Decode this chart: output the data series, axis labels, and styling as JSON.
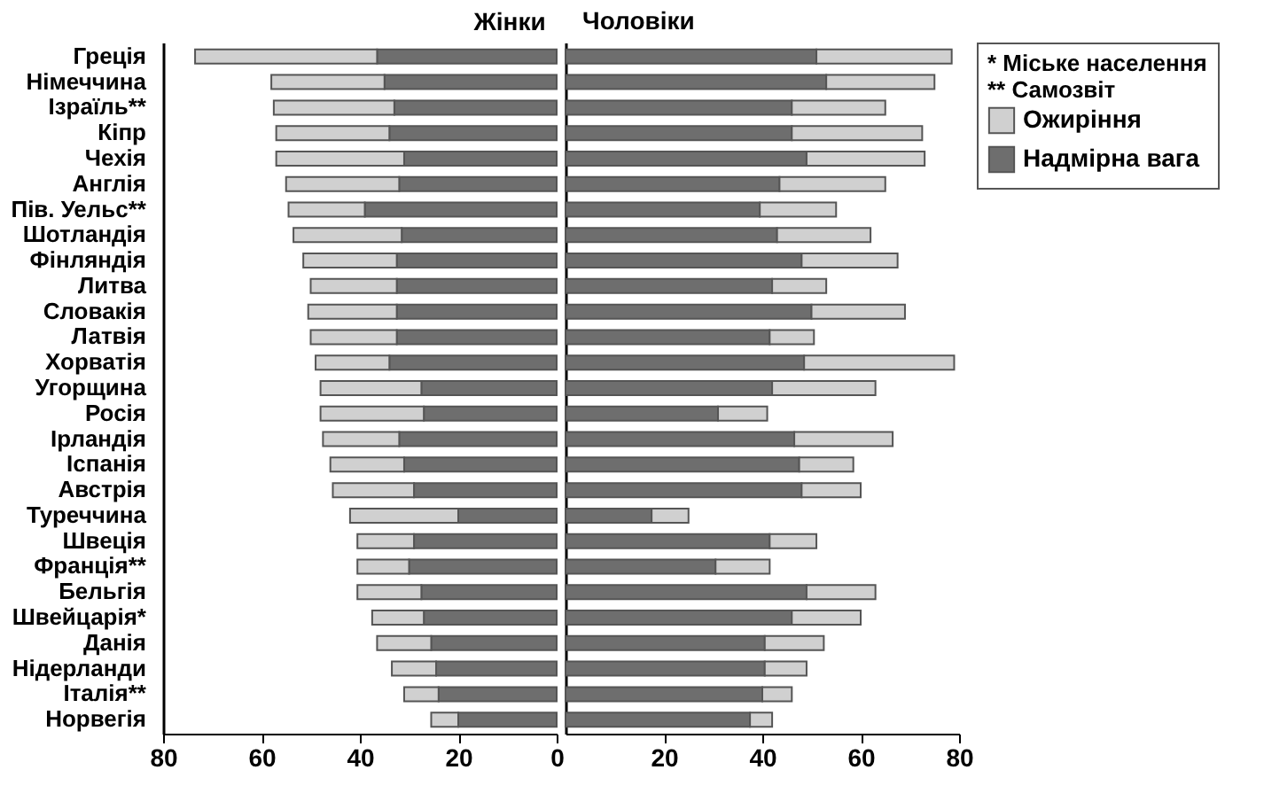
{
  "chart_data": [
    {
      "type": "bar",
      "orientation": "horizontal",
      "stacked": true,
      "title": "Жінки",
      "categories": [
        "Греція",
        "Німеччина",
        "Ізраїль**",
        "Кіпр",
        "Чехія",
        "Англія",
        "Пів. Уельс**",
        "Шотландія",
        "Фінляндія",
        "Литва",
        "Словакія",
        "Латвія",
        "Хорватія",
        "Угорщина",
        "Росія",
        "Ірландія",
        "Іспанія",
        "Австрія",
        "Туреччина",
        "Швеція",
        "Франція**",
        "Бельгія",
        "Швейцарія*",
        "Данія",
        "Нідерланди",
        "Італія**",
        "Норвегія"
      ],
      "series": [
        {
          "color": "#6e6e6e",
          "values": [
            36.5,
            35,
            33,
            34,
            31,
            32,
            39,
            31.5,
            32.5,
            32.5,
            32.5,
            32.5,
            34,
            27.5,
            27,
            32,
            31,
            29,
            20,
            29,
            30,
            27.5,
            27,
            25.5,
            24.5,
            24,
            20
          ]
        },
        {
          "color": "#d0d0d0",
          "values": [
            37,
            23,
            24.5,
            23,
            26,
            23,
            15.5,
            22,
            19,
            17.5,
            18,
            17.5,
            15,
            20.5,
            21,
            15.5,
            15,
            16.5,
            22,
            11.5,
            10.5,
            13,
            10.5,
            11,
            9,
            7,
            5.5
          ]
        }
      ],
      "xlim": [
        80,
        0
      ],
      "xticks": [
        80,
        60,
        40,
        20,
        0
      ],
      "grid": false,
      "legend": false
    },
    {
      "type": "bar",
      "orientation": "horizontal",
      "stacked": true,
      "title": "Чоловіки",
      "categories": [
        null,
        null,
        null,
        null,
        null,
        null,
        null,
        null,
        null,
        null,
        null,
        null,
        null,
        null,
        null,
        null,
        null,
        null,
        null,
        null,
        null,
        null,
        null,
        null,
        null,
        null,
        null
      ],
      "series": [
        {
          "name": "Надмірна вага",
          "color": "#6e6e6e",
          "values": [
            51,
            53,
            46,
            46,
            49,
            43.5,
            39.5,
            43,
            48,
            42,
            50,
            41.5,
            48.5,
            42,
            31,
            46.5,
            47.5,
            48,
            17.5,
            41.5,
            30.5,
            49,
            46,
            40.5,
            40.5,
            40,
            37.5
          ]
        },
        {
          "name": "Ожиріння",
          "color": "#d0d0d0",
          "values": [
            27.5,
            22,
            19,
            26.5,
            24,
            21.5,
            15.5,
            19,
            19.5,
            11,
            19,
            9,
            30.5,
            21,
            10,
            20,
            11,
            12,
            7.5,
            9.5,
            11,
            14,
            14,
            12,
            8.5,
            6,
            4.5
          ]
        }
      ],
      "xlim": [
        0,
        80
      ],
      "xticks": [
        20,
        40,
        60,
        80
      ],
      "grid": false,
      "legend": "right",
      "tick_labels": "x",
      "annotations": [
        "* Міське населення",
        "** Самозвіт"
      ]
    }
  ]
}
